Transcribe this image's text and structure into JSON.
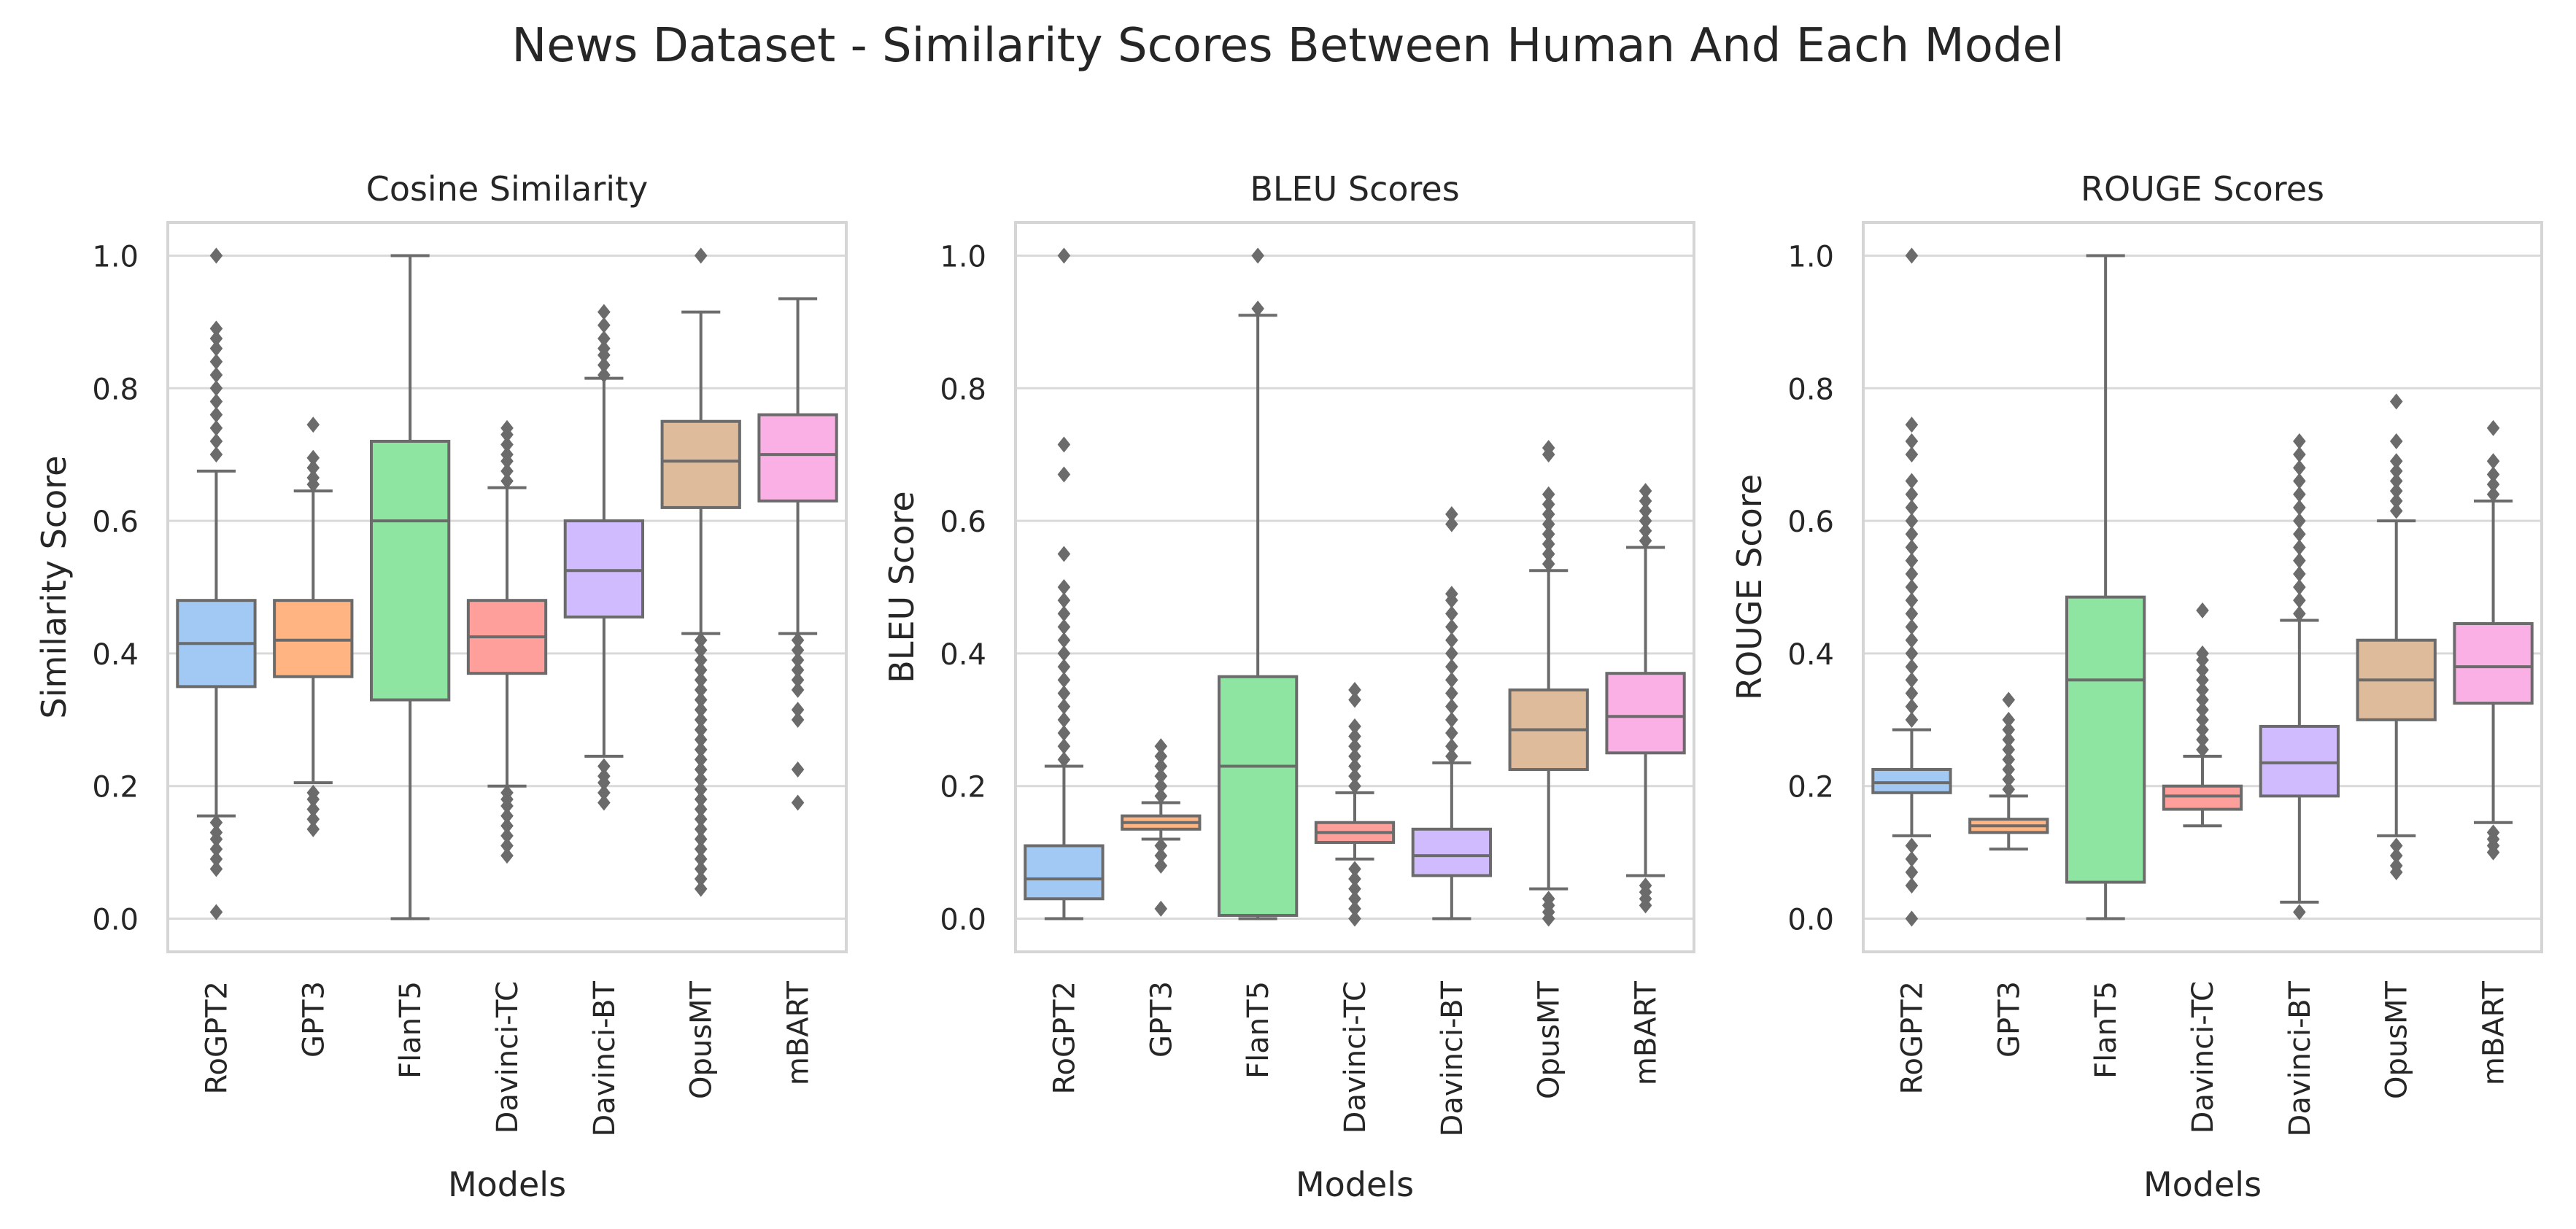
{
  "figure_title": "News Dataset - Similarity Scores Between Human And Each Model",
  "colors": {
    "RoGPT2": "#a1c9f4",
    "GPT3": "#ffb482",
    "FlanT5": "#8de5a1",
    "Davinci-TC": "#ff9f9b",
    "Davinci-BT": "#d0bbff",
    "OpusMT": "#debb9b",
    "mBART": "#fab0e4",
    "box_line": "#6b6b6b",
    "grid": "#d9d9d9",
    "frame": "#d5d5d5"
  },
  "chart_data": [
    {
      "type": "box",
      "title": "Cosine Similarity",
      "xlabel": "Models",
      "ylabel": "Similarity Score",
      "ylim": [
        -0.05,
        1.05
      ],
      "yticks": [
        0.0,
        0.2,
        0.4,
        0.6,
        0.8,
        1.0
      ],
      "ytick_labels": [
        "0.0",
        "0.2",
        "0.4",
        "0.6",
        "0.8",
        "1.0"
      ],
      "categories": [
        "RoGPT2",
        "GPT3",
        "FlanT5",
        "Davinci-TC",
        "Davinci-BT",
        "OpusMT",
        "mBART"
      ],
      "boxes": [
        {
          "min": 0.155,
          "q1": 0.35,
          "median": 0.415,
          "q3": 0.48,
          "max": 0.675,
          "outliers": [
            0.01,
            0.075,
            0.09,
            0.105,
            0.12,
            0.13,
            0.145,
            0.7,
            0.72,
            0.74,
            0.76,
            0.78,
            0.8,
            0.82,
            0.84,
            0.86,
            0.875,
            0.89,
            1.0
          ]
        },
        {
          "min": 0.205,
          "q1": 0.365,
          "median": 0.42,
          "q3": 0.48,
          "max": 0.645,
          "outliers": [
            0.135,
            0.15,
            0.165,
            0.18,
            0.19,
            0.655,
            0.665,
            0.68,
            0.695,
            0.745
          ]
        },
        {
          "min": 0.0,
          "q1": 0.33,
          "median": 0.6,
          "q3": 0.72,
          "max": 1.0,
          "outliers": []
        },
        {
          "min": 0.2,
          "q1": 0.37,
          "median": 0.425,
          "q3": 0.48,
          "max": 0.65,
          "outliers": [
            0.095,
            0.11,
            0.125,
            0.14,
            0.155,
            0.17,
            0.18,
            0.19,
            0.66,
            0.675,
            0.69,
            0.7,
            0.715,
            0.73,
            0.74
          ]
        },
        {
          "min": 0.245,
          "q1": 0.455,
          "median": 0.525,
          "q3": 0.6,
          "max": 0.815,
          "outliers": [
            0.175,
            0.19,
            0.205,
            0.215,
            0.23,
            0.82,
            0.835,
            0.85,
            0.86,
            0.875,
            0.895,
            0.915
          ]
        },
        {
          "min": 0.43,
          "q1": 0.62,
          "median": 0.69,
          "q3": 0.75,
          "max": 0.915,
          "outliers": [
            0.045,
            0.06,
            0.075,
            0.09,
            0.105,
            0.12,
            0.135,
            0.15,
            0.165,
            0.18,
            0.195,
            0.21,
            0.225,
            0.24,
            0.255,
            0.27,
            0.285,
            0.3,
            0.315,
            0.33,
            0.345,
            0.36,
            0.375,
            0.39,
            0.405,
            0.42,
            1.0
          ]
        },
        {
          "min": 0.43,
          "q1": 0.63,
          "median": 0.7,
          "q3": 0.76,
          "max": 0.935,
          "outliers": [
            0.175,
            0.225,
            0.3,
            0.315,
            0.345,
            0.36,
            0.375,
            0.39,
            0.405,
            0.42
          ]
        }
      ]
    },
    {
      "type": "box",
      "title": "BLEU Scores",
      "xlabel": "Models",
      "ylabel": "BLEU Score",
      "ylim": [
        -0.05,
        1.05
      ],
      "yticks": [
        0.0,
        0.2,
        0.4,
        0.6,
        0.8,
        1.0
      ],
      "ytick_labels": [
        "0.0",
        "0.2",
        "0.4",
        "0.6",
        "0.8",
        "1.0"
      ],
      "categories": [
        "RoGPT2",
        "GPT3",
        "FlanT5",
        "Davinci-TC",
        "Davinci-BT",
        "OpusMT",
        "mBART"
      ],
      "boxes": [
        {
          "min": 0.0,
          "q1": 0.03,
          "median": 0.06,
          "q3": 0.11,
          "max": 0.23,
          "outliers": [
            0.24,
            0.26,
            0.28,
            0.3,
            0.32,
            0.34,
            0.36,
            0.38,
            0.4,
            0.42,
            0.44,
            0.46,
            0.48,
            0.5,
            0.55,
            0.67,
            0.715,
            1.0
          ]
        },
        {
          "min": 0.12,
          "q1": 0.135,
          "median": 0.145,
          "q3": 0.155,
          "max": 0.175,
          "outliers": [
            0.015,
            0.08,
            0.095,
            0.11,
            0.185,
            0.2,
            0.215,
            0.23,
            0.245,
            0.26
          ]
        },
        {
          "min": 0.0,
          "q1": 0.005,
          "median": 0.23,
          "q3": 0.365,
          "max": 0.91,
          "outliers": [
            0.92,
            1.0
          ]
        },
        {
          "min": 0.09,
          "q1": 0.115,
          "median": 0.13,
          "q3": 0.145,
          "max": 0.19,
          "outliers": [
            0.0,
            0.015,
            0.03,
            0.045,
            0.06,
            0.075,
            0.2,
            0.215,
            0.23,
            0.245,
            0.26,
            0.275,
            0.29,
            0.33,
            0.345
          ]
        },
        {
          "min": 0.0,
          "q1": 0.065,
          "median": 0.095,
          "q3": 0.135,
          "max": 0.235,
          "outliers": [
            0.245,
            0.26,
            0.28,
            0.3,
            0.32,
            0.34,
            0.36,
            0.38,
            0.4,
            0.42,
            0.44,
            0.46,
            0.48,
            0.49,
            0.595,
            0.61
          ]
        },
        {
          "min": 0.045,
          "q1": 0.225,
          "median": 0.285,
          "q3": 0.345,
          "max": 0.525,
          "outliers": [
            0.0,
            0.01,
            0.02,
            0.03,
            0.535,
            0.55,
            0.565,
            0.58,
            0.595,
            0.61,
            0.625,
            0.64,
            0.7,
            0.71
          ]
        },
        {
          "min": 0.065,
          "q1": 0.25,
          "median": 0.305,
          "q3": 0.37,
          "max": 0.56,
          "outliers": [
            0.02,
            0.03,
            0.04,
            0.05,
            0.57,
            0.585,
            0.6,
            0.615,
            0.63,
            0.645
          ]
        }
      ]
    },
    {
      "type": "box",
      "title": "ROUGE Scores",
      "xlabel": "Models",
      "ylabel": "ROUGE Score",
      "ylim": [
        -0.05,
        1.05
      ],
      "yticks": [
        0.0,
        0.2,
        0.4,
        0.6,
        0.8,
        1.0
      ],
      "ytick_labels": [
        "0.0",
        "0.2",
        "0.4",
        "0.6",
        "0.8",
        "1.0"
      ],
      "categories": [
        "RoGPT2",
        "GPT3",
        "FlanT5",
        "Davinci-TC",
        "Davinci-BT",
        "OpusMT",
        "mBART"
      ],
      "boxes": [
        {
          "min": 0.125,
          "q1": 0.19,
          "median": 0.205,
          "q3": 0.225,
          "max": 0.285,
          "outliers": [
            0.0,
            0.05,
            0.07,
            0.09,
            0.11,
            0.3,
            0.32,
            0.34,
            0.36,
            0.38,
            0.4,
            0.42,
            0.44,
            0.46,
            0.48,
            0.5,
            0.52,
            0.54,
            0.56,
            0.58,
            0.6,
            0.62,
            0.64,
            0.66,
            0.7,
            0.72,
            0.745,
            1.0
          ]
        },
        {
          "min": 0.105,
          "q1": 0.13,
          "median": 0.14,
          "q3": 0.15,
          "max": 0.185,
          "outliers": [
            0.195,
            0.21,
            0.225,
            0.24,
            0.255,
            0.27,
            0.285,
            0.3,
            0.33
          ]
        },
        {
          "min": 0.0,
          "q1": 0.055,
          "median": 0.36,
          "q3": 0.485,
          "max": 1.0,
          "outliers": []
        },
        {
          "min": 0.14,
          "q1": 0.165,
          "median": 0.185,
          "q3": 0.2,
          "max": 0.245,
          "outliers": [
            0.255,
            0.27,
            0.285,
            0.3,
            0.315,
            0.33,
            0.345,
            0.36,
            0.375,
            0.39,
            0.4,
            0.465
          ]
        },
        {
          "min": 0.025,
          "q1": 0.185,
          "median": 0.235,
          "q3": 0.29,
          "max": 0.45,
          "outliers": [
            0.01,
            0.46,
            0.48,
            0.5,
            0.52,
            0.54,
            0.56,
            0.58,
            0.6,
            0.62,
            0.64,
            0.66,
            0.68,
            0.7,
            0.72
          ]
        },
        {
          "min": 0.125,
          "q1": 0.3,
          "median": 0.36,
          "q3": 0.42,
          "max": 0.6,
          "outliers": [
            0.07,
            0.08,
            0.095,
            0.11,
            0.615,
            0.63,
            0.645,
            0.66,
            0.675,
            0.69,
            0.72,
            0.78
          ]
        },
        {
          "min": 0.145,
          "q1": 0.325,
          "median": 0.38,
          "q3": 0.445,
          "max": 0.63,
          "outliers": [
            0.1,
            0.11,
            0.12,
            0.13,
            0.64,
            0.655,
            0.67,
            0.69,
            0.74
          ]
        }
      ]
    }
  ]
}
